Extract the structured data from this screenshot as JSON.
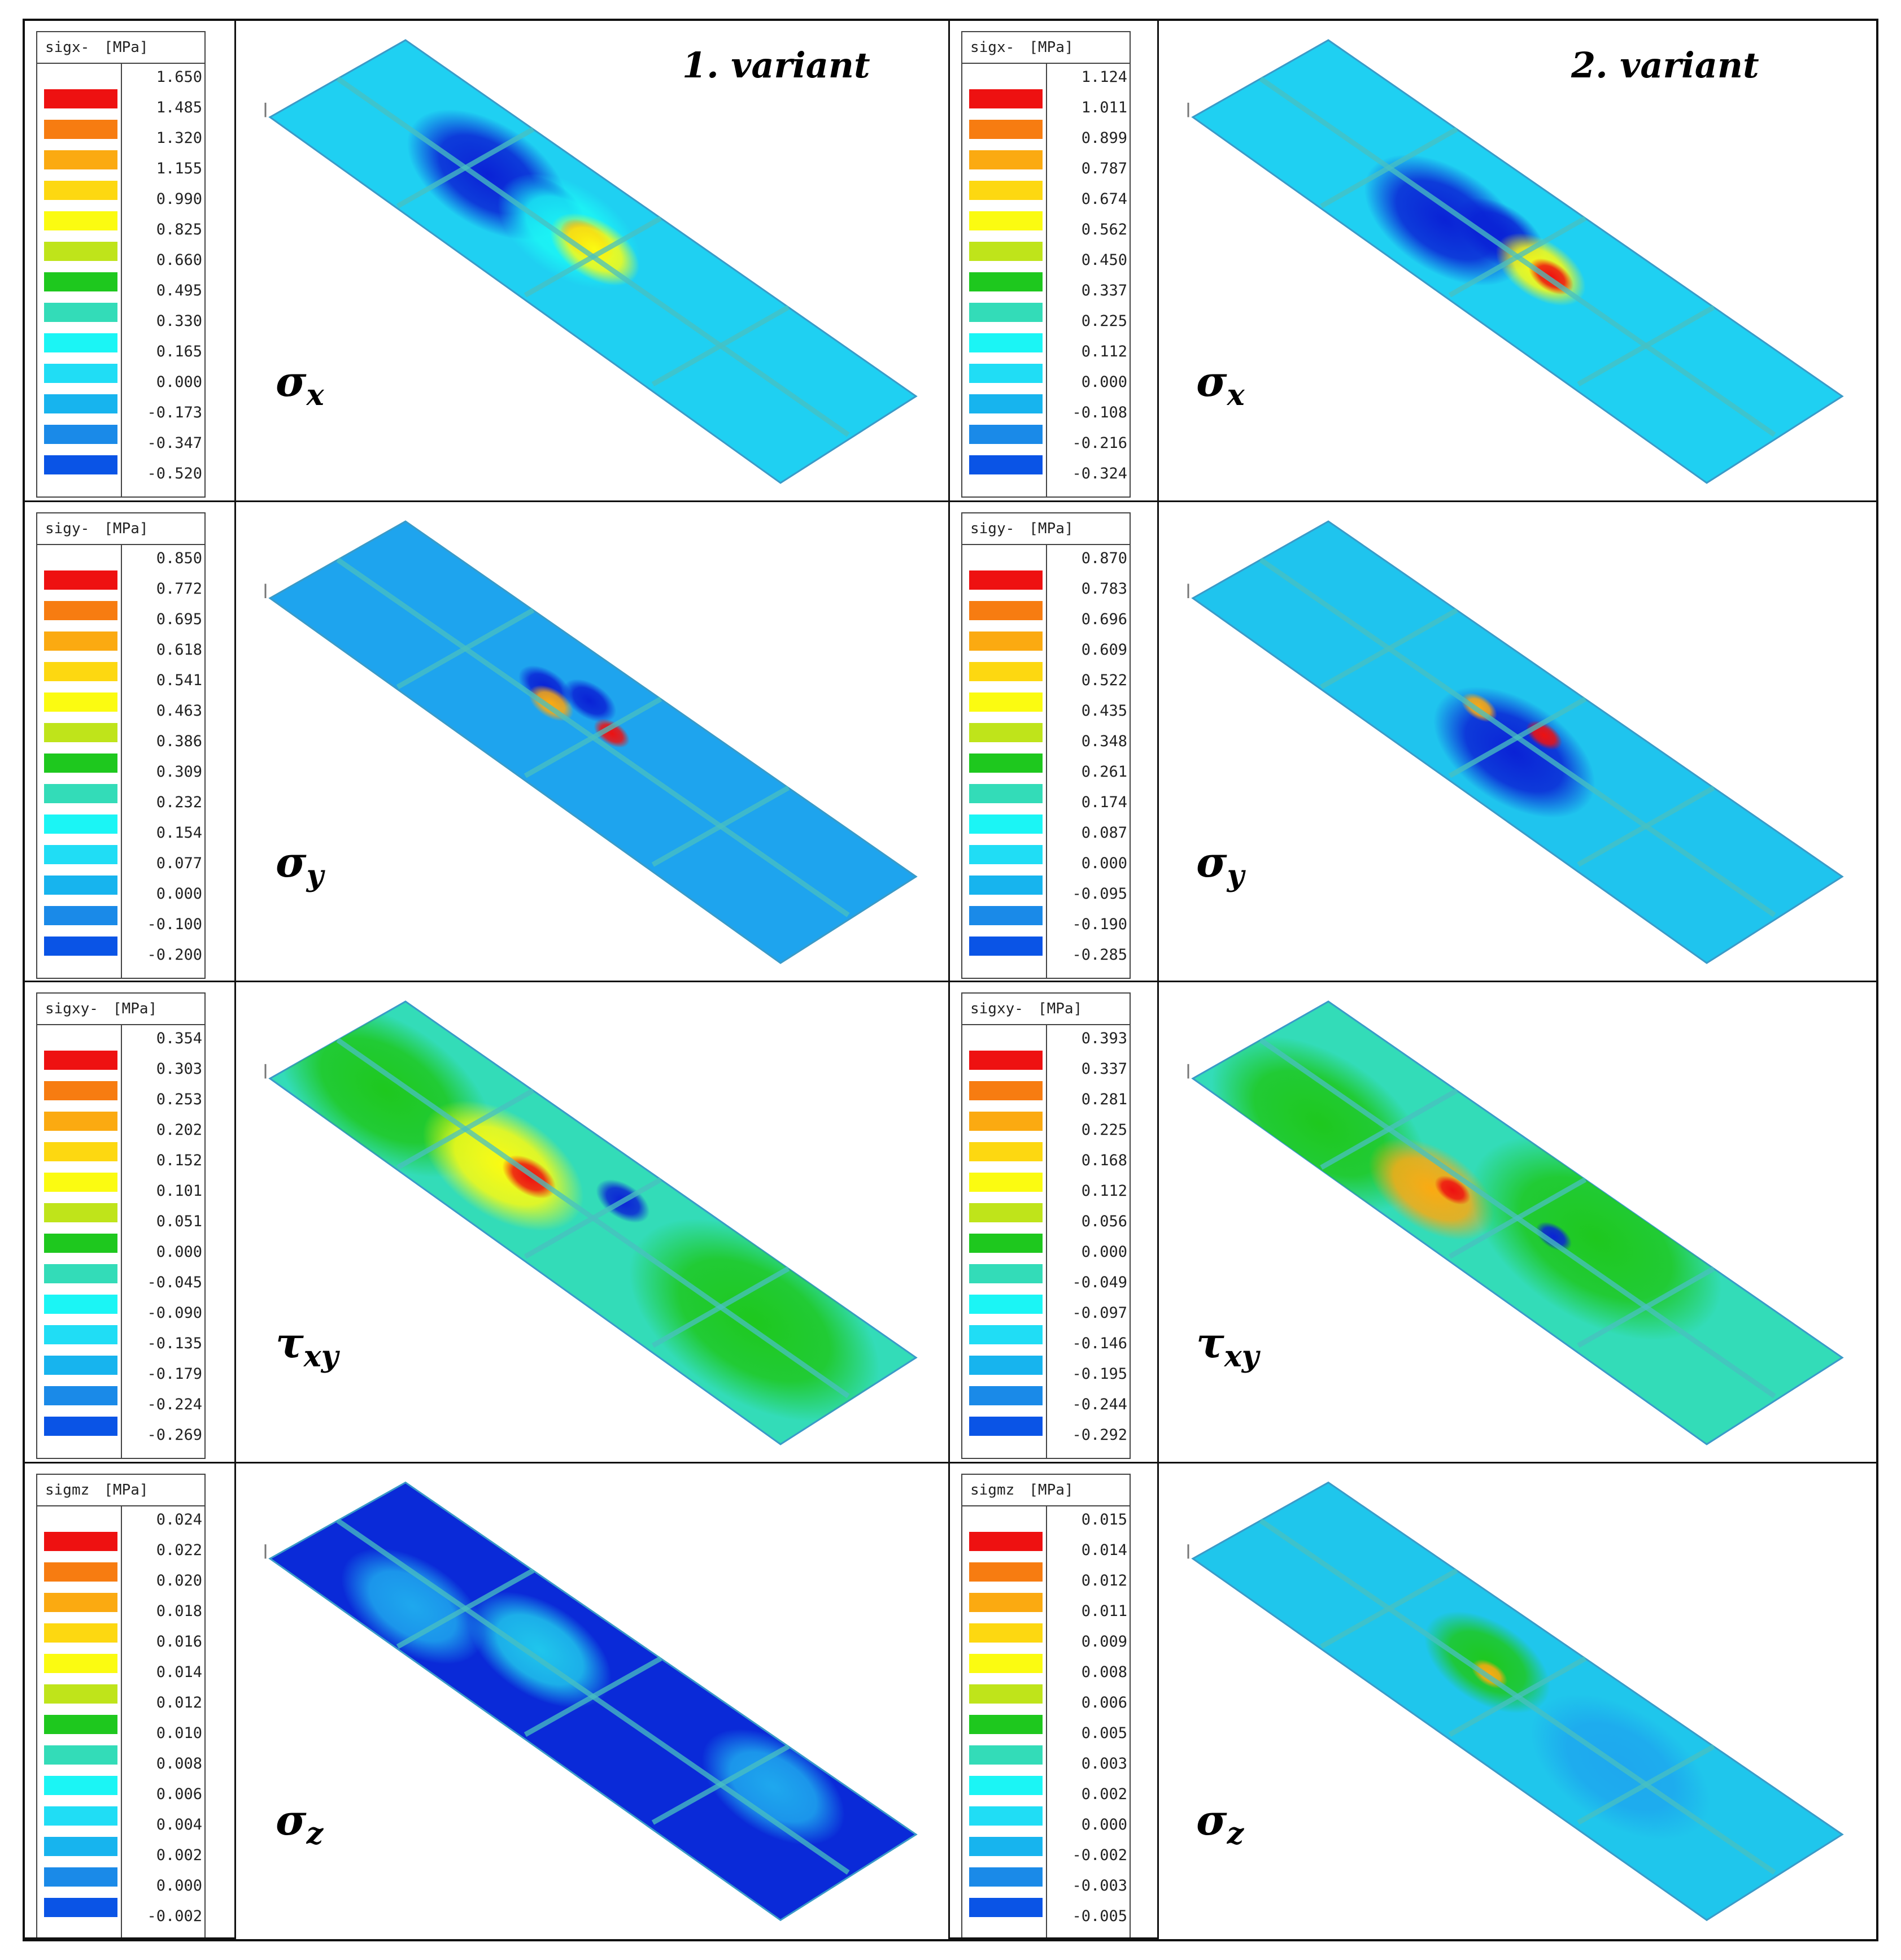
{
  "variants": [
    {
      "label": "1.   variant"
    },
    {
      "label": "2.  variant"
    }
  ],
  "rows": [
    {
      "symbol": "σ",
      "symbol_sub": "x",
      "panels": [
        {
          "legend_title": "sigx-",
          "legend_unit": "[MPa]",
          "ticks": [
            "1.650",
            "1.485",
            "1.320",
            "1.155",
            "0.990",
            "0.825",
            "0.660",
            "0.495",
            "0.330",
            "0.165",
            "0.000",
            "-0.173",
            "-0.347",
            "-0.520"
          ]
        },
        {
          "legend_title": "sigx-",
          "legend_unit": "[MPa]",
          "ticks": [
            "1.124",
            "1.011",
            "0.899",
            "0.787",
            "0.674",
            "0.562",
            "0.450",
            "0.337",
            "0.225",
            "0.112",
            "0.000",
            "-0.108",
            "-0.216",
            "-0.324"
          ]
        }
      ]
    },
    {
      "symbol": "σ",
      "symbol_sub": "y",
      "panels": [
        {
          "legend_title": "sigy-",
          "legend_unit": "[MPa]",
          "ticks": [
            "0.850",
            "0.772",
            "0.695",
            "0.618",
            "0.541",
            "0.463",
            "0.386",
            "0.309",
            "0.232",
            "0.154",
            "0.077",
            "0.000",
            "-0.100",
            "-0.200"
          ]
        },
        {
          "legend_title": "sigy-",
          "legend_unit": "[MPa]",
          "ticks": [
            "0.870",
            "0.783",
            "0.696",
            "0.609",
            "0.522",
            "0.435",
            "0.348",
            "0.261",
            "0.174",
            "0.087",
            "0.000",
            "-0.095",
            "-0.190",
            "-0.285"
          ]
        }
      ]
    },
    {
      "symbol": "τ",
      "symbol_sub": "xy",
      "panels": [
        {
          "legend_title": "sigxy-",
          "legend_unit": "[MPa]",
          "ticks": [
            "0.354",
            "0.303",
            "0.253",
            "0.202",
            "0.152",
            "0.101",
            "0.051",
            "0.000",
            "-0.045",
            "-0.090",
            "-0.135",
            "-0.179",
            "-0.224",
            "-0.269"
          ]
        },
        {
          "legend_title": "sigxy-",
          "legend_unit": "[MPa]",
          "ticks": [
            "0.393",
            "0.337",
            "0.281",
            "0.225",
            "0.168",
            "0.112",
            "0.056",
            "0.000",
            "-0.049",
            "-0.097",
            "-0.146",
            "-0.195",
            "-0.244",
            "-0.292"
          ]
        }
      ]
    },
    {
      "symbol": "σ",
      "symbol_sub": "z",
      "panels": [
        {
          "legend_title": "sigmz",
          "legend_unit": "[MPa]",
          "ticks": [
            "0.024",
            "0.022",
            "0.020",
            "0.018",
            "0.016",
            "0.014",
            "0.012",
            "0.010",
            "0.008",
            "0.006",
            "0.004",
            "0.002",
            "0.000",
            "-0.002"
          ]
        },
        {
          "legend_title": "sigmz",
          "legend_unit": "[MPa]",
          "ticks": [
            "0.015",
            "0.014",
            "0.012",
            "0.011",
            "0.009",
            "0.008",
            "0.006",
            "0.005",
            "0.003",
            "0.002",
            "0.000",
            "-0.002",
            "-0.003",
            "-0.005"
          ]
        }
      ]
    }
  ],
  "colors": {
    "scale": [
      "#ee1111",
      "#f77c11",
      "#fbaa11",
      "#fdd811",
      "#fbfb11",
      "#bfe41a",
      "#1ec81e",
      "#33dcb8",
      "#1bf5f5",
      "#20ddf5",
      "#17b4ee",
      "#1a8ae8",
      "#0a54e6",
      "#0a16d8"
    ],
    "plate_base": [
      "#1fccf0",
      "#1ea8ee",
      "#1c9be9",
      "#1ed6c2",
      "#1ea8ee",
      "#1fc6ec",
      "#1e6be8",
      "#1fc6ec"
    ],
    "weld": "#4ac0c0"
  },
  "plate_fields": [
    {
      "base": "#1fd0f2",
      "spots": [
        [
          "#0a22d6",
          0.28,
          0.55,
          0.09
        ],
        [
          "#0a22d6",
          0.38,
          0.62,
          0.04
        ],
        [
          "#1bf5f5",
          0.44,
          0.55,
          0.08
        ],
        [
          "#ee1111",
          0.47,
          0.57,
          0.03
        ],
        [
          "#fbfb11",
          0.49,
          0.55,
          0.05
        ]
      ]
    },
    {
      "base": "#1fd0f2",
      "spots": [
        [
          "#0a22d6",
          0.38,
          0.42,
          0.09
        ],
        [
          "#0a22d6",
          0.45,
          0.56,
          0.05
        ],
        [
          "#fbfb11",
          0.54,
          0.52,
          0.05
        ],
        [
          "#ee1111",
          0.56,
          0.52,
          0.025
        ]
      ]
    },
    {
      "base": "#1ea4ee",
      "spots": [
        [
          "#0a22d6",
          0.38,
          0.6,
          0.03
        ],
        [
          "#0a22d6",
          0.44,
          0.7,
          0.03
        ],
        [
          "#fbaa11",
          0.41,
          0.53,
          0.025
        ],
        [
          "#ee1111",
          0.51,
          0.6,
          0.02
        ]
      ]
    },
    {
      "base": "#1fc4ee",
      "spots": [
        [
          "#0a22d6",
          0.52,
          0.4,
          0.09
        ],
        [
          "#fbaa11",
          0.42,
          0.52,
          0.02
        ],
        [
          "#ee1111",
          0.52,
          0.62,
          0.02
        ]
      ]
    },
    {
      "base": "#33dcb8",
      "spots": [
        [
          "#1ec81e",
          0.12,
          0.4,
          0.12
        ],
        [
          "#fbfb11",
          0.34,
          0.44,
          0.09
        ],
        [
          "#ee1111",
          0.38,
          0.48,
          0.03
        ],
        [
          "#0a22d6",
          0.5,
          0.72,
          0.03
        ],
        [
          "#1ec81e",
          0.8,
          0.56,
          0.14
        ]
      ]
    },
    {
      "base": "#33dcb8",
      "spots": [
        [
          "#1ec81e",
          0.18,
          0.25,
          0.12
        ],
        [
          "#fbaa11",
          0.38,
          0.32,
          0.07
        ],
        [
          "#ee1111",
          0.4,
          0.4,
          0.02
        ],
        [
          "#1ec81e",
          0.6,
          0.7,
          0.14
        ],
        [
          "#0a22d6",
          0.56,
          0.54,
          0.02
        ]
      ]
    },
    {
      "base": "#0a2ad8",
      "spots": [
        [
          "#1fc6ec",
          0.38,
          0.56,
          0.08
        ],
        [
          "#1ea8ee",
          0.2,
          0.3,
          0.08
        ],
        [
          "#1ea8ee",
          0.8,
          0.7,
          0.08
        ]
      ]
    },
    {
      "base": "#1fc6ec",
      "spots": [
        [
          "#1ec81e",
          0.42,
          0.58,
          0.07
        ],
        [
          "#fbaa11",
          0.44,
          0.52,
          0.02
        ],
        [
          "#1ea8ee",
          0.7,
          0.5,
          0.1
        ]
      ]
    }
  ]
}
